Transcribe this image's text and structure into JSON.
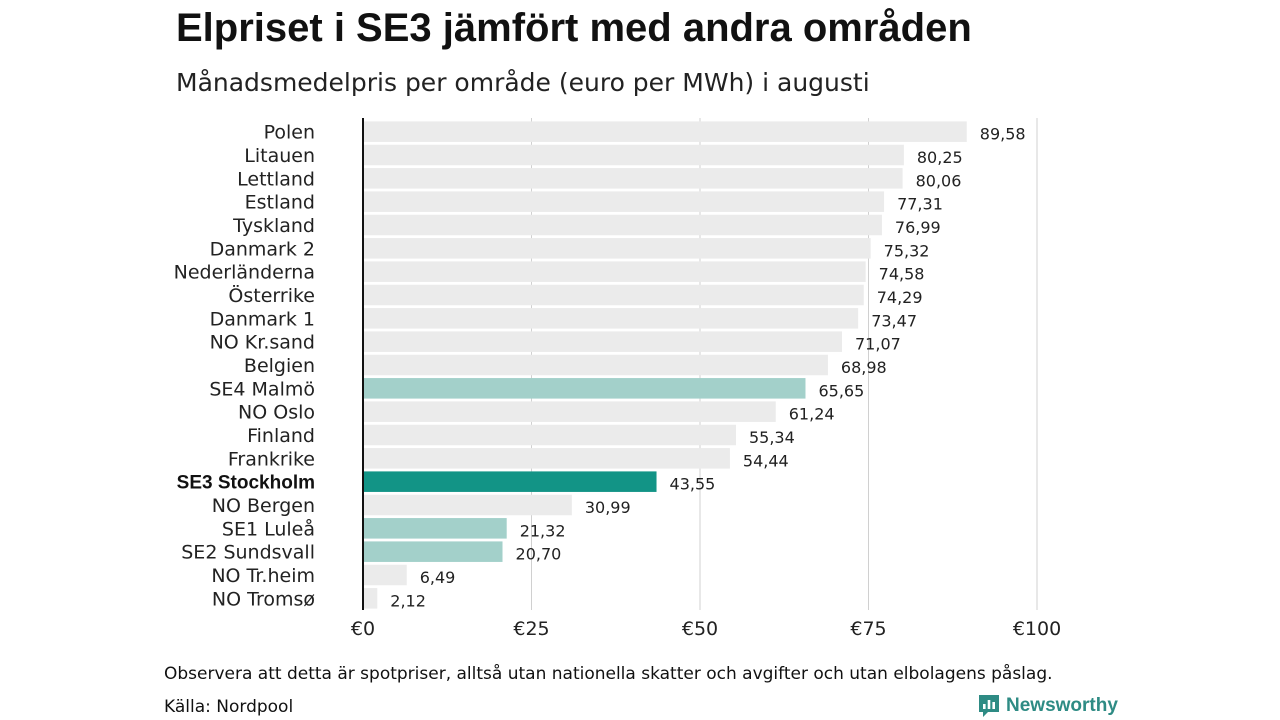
{
  "title": "Elpriset i SE3 jämfört med andra områden",
  "subtitle": "Månadsmedelpris per område (euro per MWh) i augusti",
  "note": "Observera att detta är spotpriser, alltså utan nationella skatter och avgifter och utan elbolagens påslag.",
  "source": "Källa: Nordpool",
  "brand": {
    "name": "Newsworthy",
    "icon": "newsworthy-logo-icon",
    "color": "#2e8b84"
  },
  "colors": {
    "default": "#ebebeb",
    "se_other": "#a3d0ca",
    "highlight": "#129486",
    "gridline": "#d0d0d0",
    "axis": "#111111"
  },
  "chart_data": {
    "type": "bar",
    "orientation": "horizontal",
    "categories": [
      "Polen",
      "Litauen",
      "Lettland",
      "Estland",
      "Tyskland",
      "Danmark 2",
      "Nederländerna",
      "Österrike",
      "Danmark 1",
      "NO Kr.sand",
      "Belgien",
      "SE4 Malmö",
      "NO Oslo",
      "Finland",
      "Frankrike",
      "SE3 Stockholm",
      "NO Bergen",
      "SE1 Luleå",
      "SE2 Sundsvall",
      "NO Tr.heim",
      "NO Tromsø"
    ],
    "values": [
      89.58,
      80.25,
      80.06,
      77.31,
      76.99,
      75.32,
      74.58,
      74.29,
      73.47,
      71.07,
      68.98,
      65.65,
      61.24,
      55.34,
      54.44,
      43.55,
      30.99,
      21.32,
      20.7,
      6.49,
      2.12
    ],
    "value_labels": [
      "89,58",
      "80,25",
      "80,06",
      "77,31",
      "76,99",
      "75,32",
      "74,58",
      "74,29",
      "73,47",
      "71,07",
      "68,98",
      "65,65",
      "61,24",
      "55,34",
      "54,44",
      "43,55",
      "30,99",
      "21,32",
      "20,70",
      "6,49",
      "2,12"
    ],
    "color_groups": [
      "default",
      "default",
      "default",
      "default",
      "default",
      "default",
      "default",
      "default",
      "default",
      "default",
      "default",
      "se_other",
      "default",
      "default",
      "default",
      "highlight",
      "default",
      "se_other",
      "se_other",
      "default",
      "default"
    ],
    "highlight_category": "SE3 Stockholm",
    "xlim": [
      0,
      100
    ],
    "xticks": [
      0,
      25,
      50,
      75,
      100
    ],
    "xtick_labels": [
      "€0",
      "€25",
      "€50",
      "€75",
      "€100"
    ],
    "grid": "vertical"
  }
}
